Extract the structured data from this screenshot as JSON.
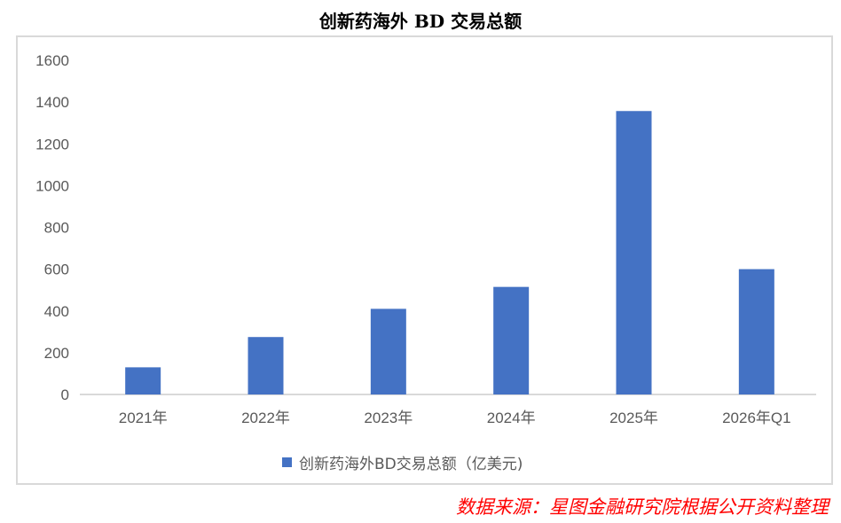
{
  "chart_data": {
    "type": "bar",
    "title": "创新药海外 BD 交易总额",
    "categories": [
      "2021年",
      "2022年",
      "2023年",
      "2024年",
      "2025年",
      "2026年Q1"
    ],
    "series": [
      {
        "name": "创新药海外BD交易总额（亿美元)",
        "values": [
          130,
          275,
          410,
          515,
          1357,
          600
        ],
        "color": "#4472c4"
      }
    ],
    "yticks": [
      "0",
      "200",
      "400",
      "600",
      "800",
      "1000",
      "1200",
      "1400",
      "1600"
    ],
    "ylim": [
      0,
      1600
    ],
    "xlabel": "",
    "ylabel": "",
    "legend": "bottom",
    "grid": false
  },
  "source": "数据来源：星图金融研究院根据公开资料整理"
}
